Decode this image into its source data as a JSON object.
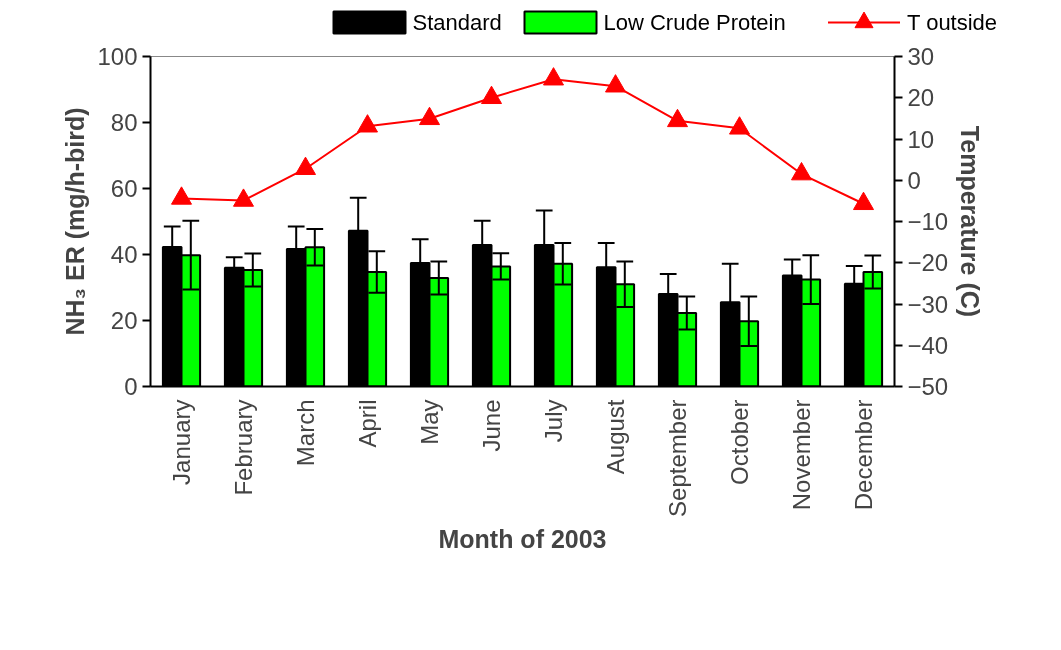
{
  "chart_data": {
    "type": "bar",
    "categories": [
      "January",
      "February",
      "March",
      "April",
      "May",
      "June",
      "July",
      "August",
      "September",
      "October",
      "November",
      "December"
    ],
    "series": [
      {
        "name": "Standard",
        "color": "#000000",
        "values": [
          42.3,
          36.0,
          41.7,
          47.2,
          37.4,
          42.9,
          42.9,
          36.1,
          28.0,
          25.5,
          33.6,
          31.1
        ],
        "errors": [
          6.2,
          3.2,
          6.8,
          10.0,
          7.2,
          7.3,
          10.4,
          7.4,
          6.1,
          11.7,
          4.9,
          5.4
        ]
      },
      {
        "name": "Low Crude Protein",
        "color": "#00ff00",
        "values": [
          39.8,
          35.3,
          42.2,
          34.7,
          32.9,
          36.4,
          37.2,
          31.0,
          22.3,
          19.8,
          32.4,
          34.7
        ],
        "errors": [
          10.4,
          5.0,
          5.5,
          6.3,
          5.0,
          4.0,
          6.3,
          6.9,
          5.0,
          7.5,
          7.4,
          5.0
        ]
      },
      {
        "name": "T outside",
        "type": "line",
        "axis": "y2",
        "color": "#ff0000",
        "marker": "triangle",
        "values": [
          -4.4,
          -4.9,
          2.8,
          13.1,
          14.9,
          20.0,
          24.5,
          22.8,
          14.4,
          12.6,
          1.5,
          -5.7
        ]
      }
    ],
    "xlabel": "Month of 2003",
    "ylabel": "NH₃ ER (mg/h-bird)",
    "y2label": "Temperature (C)",
    "ylim": [
      0,
      100
    ],
    "yticks": [
      0,
      20,
      40,
      60,
      80,
      100
    ],
    "y2lim": [
      -50,
      30
    ],
    "y2ticks": [
      -50,
      -40,
      -30,
      -20,
      -10,
      0,
      10,
      20,
      30
    ],
    "legend": "top",
    "grid": false
  }
}
